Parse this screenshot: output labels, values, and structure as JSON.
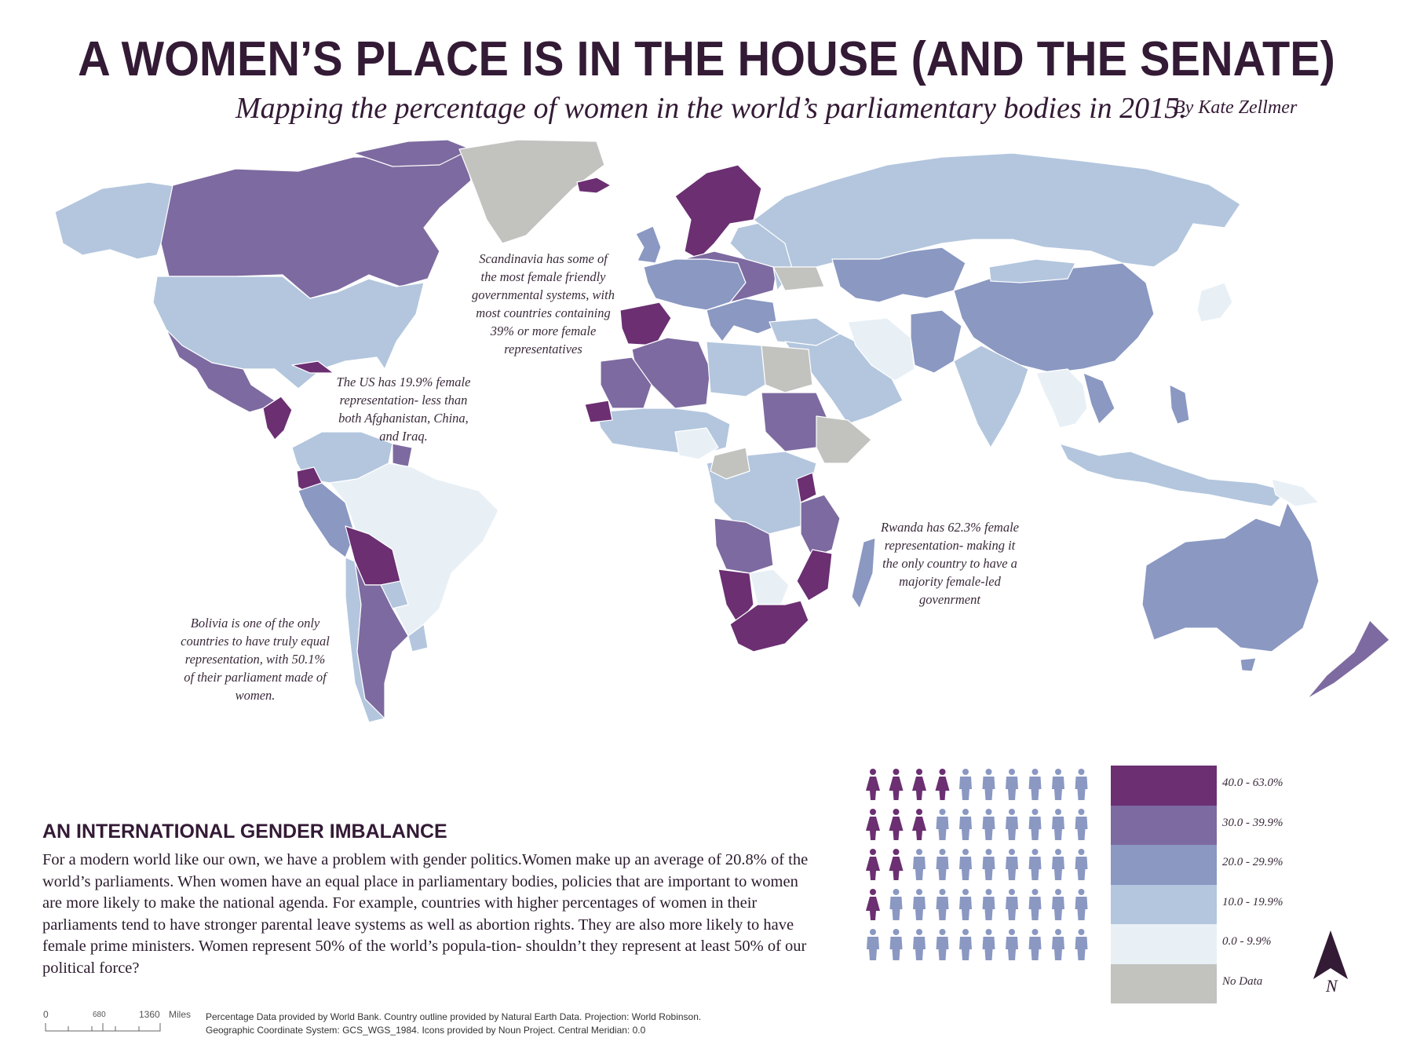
{
  "header": {
    "title": "A WOMEN’S PLACE IS IN THE HOUSE (AND THE SENATE)",
    "subtitle": "Mapping the percentage of women in the world’s parliamentary bodies in 2015.",
    "author": "By Kate Zellmer"
  },
  "colors": {
    "class_40_63": "#6b2f72",
    "class_30_39": "#7d6aa0",
    "class_20_29": "#8a98c2",
    "class_10_19": "#b3c6de",
    "class_0_9": "#e8f0f6",
    "no_data": "#c2c3bf",
    "ocean": "#ffffff"
  },
  "annotations": {
    "scandinavia": [
      "Scandinavia has some of",
      "the most female friendly",
      "governmental systems, with",
      "most countries containing",
      "39% or more female",
      "representatives"
    ],
    "us": [
      "The US has 19.9% female",
      "representation- less than",
      "both Afghanistan, China,",
      "and Iraq."
    ],
    "rwanda": [
      "Rwanda has 62.3% female",
      "representation- making it",
      "the only country to have a",
      "majority female-led",
      "govenrment"
    ],
    "bolivia": [
      "Bolivia is one of the only",
      "countries to have truly equal",
      "representation, with 50.1%",
      "of their parliament made of",
      "women."
    ]
  },
  "section": {
    "heading": "AN INTERNATIONAL GENDER IMBALANCE",
    "body": "For a modern world like our own, we have a problem with gender politics.Women make up an average of 20.8% of the world’s parliaments. When women have an equal place in parliamentary bodies, policies that are important to women are more likely to make the national agenda. For example, countries with higher percentages of women in their parliaments tend to have stronger parental leave systems as well as abortion rights. They are also more likely to have female prime ministers. Women represent 50% of the world’s popula-tion- shouldn’t they represent at least 50% of our political force?"
  },
  "pictogram": {
    "per_row": 10,
    "women_per_row": [
      4,
      3,
      2,
      1,
      0
    ]
  },
  "legend": [
    {
      "label": "40.0 - 63.0%",
      "color": "#6b2f72"
    },
    {
      "label": "30.0 - 39.9%",
      "color": "#7d6aa0"
    },
    {
      "label": "20.0 - 29.9%",
      "color": "#8a98c2"
    },
    {
      "label": "10.0 - 19.9%",
      "color": "#b3c6de"
    },
    {
      "label": "0.0 - 9.9%",
      "color": "#e8f0f6"
    },
    {
      "label": "No Data",
      "color": "#c2c3bf"
    }
  ],
  "north_arrow": {
    "label": "N"
  },
  "scalebar": {
    "ticks": [
      "0",
      "680",
      "1360"
    ],
    "unit": "Miles"
  },
  "credits": [
    "Percentage Data provided by World Bank. Country outline provided by Natural Earth Data. Projection: World Robinson.",
    "Geographic Coordinate System: GCS_WGS_1984. Icons provided by Noun Project. Central Meridian: 0.0"
  ]
}
